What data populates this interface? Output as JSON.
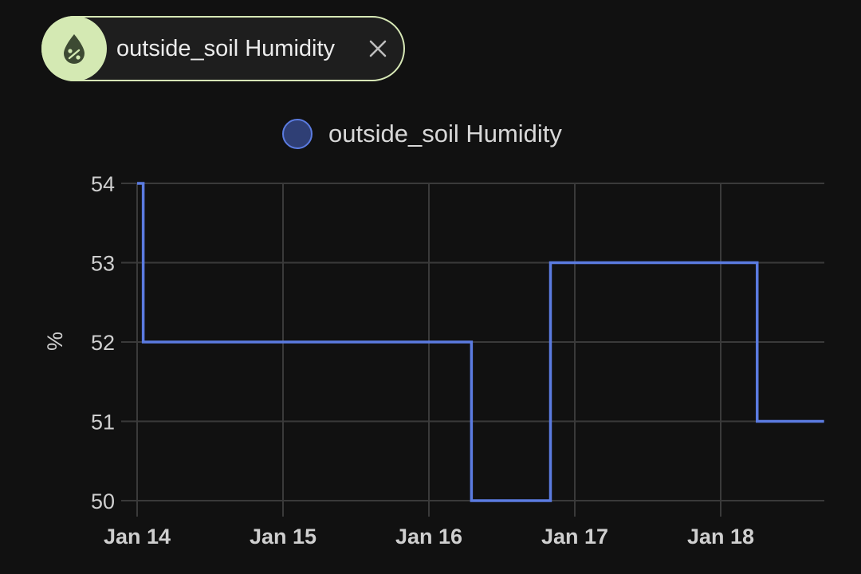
{
  "chip": {
    "label": "outside_soil Humidity",
    "icon": "water-percent-icon",
    "close_icon": "close-icon",
    "icon_bg": "#d4e9b3",
    "border_color": "#d7e8b6"
  },
  "chart_data": {
    "type": "line",
    "step": true,
    "title": "",
    "ylabel": "%",
    "xlabel": "",
    "legend": "top-center",
    "grid": true,
    "x_ticks": [
      "Jan 14",
      "Jan 15",
      "Jan 16",
      "Jan 17",
      "Jan 18"
    ],
    "y_ticks": [
      50,
      51,
      52,
      53,
      54
    ],
    "ylim": [
      50,
      54
    ],
    "series": [
      {
        "name": "outside_soil Humidity",
        "color": "#5b7be0",
        "points": [
          {
            "x": "Jan 14 00:00",
            "y": 54
          },
          {
            "x": "Jan 14 01:00",
            "y": 52
          },
          {
            "x": "Jan 15 19:00",
            "y": 52
          },
          {
            "x": "Jan 16 07:00",
            "y": 50
          },
          {
            "x": "Jan 16 20:00",
            "y": 53
          },
          {
            "x": "Jan 18 06:00",
            "y": 51
          },
          {
            "x": "Jan 18 17:00",
            "y": 51
          }
        ]
      }
    ]
  }
}
